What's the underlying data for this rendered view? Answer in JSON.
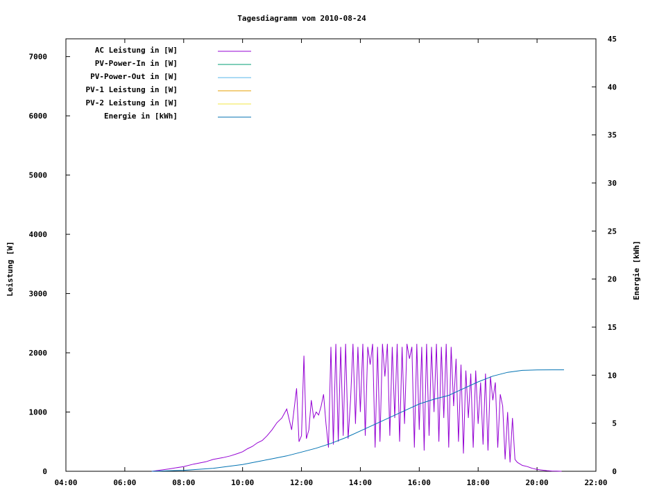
{
  "chart_data": {
    "type": "line",
    "title": "Tagesdiagramm vom 2010-08-24",
    "xlabel": "",
    "ylabel": "Leistung [W]",
    "y2label": "Energie [kWh]",
    "xlim": [
      "04:00",
      "22:00"
    ],
    "ylim": [
      0,
      7300
    ],
    "y2lim": [
      0,
      45
    ],
    "x_ticks": [
      "04:00",
      "06:00",
      "08:00",
      "10:00",
      "12:00",
      "14:00",
      "16:00",
      "18:00",
      "20:00",
      "22:00"
    ],
    "y_ticks": [
      0,
      1000,
      2000,
      3000,
      4000,
      5000,
      6000,
      7000
    ],
    "y2_ticks": [
      0,
      5,
      10,
      15,
      20,
      25,
      30,
      35,
      40,
      45
    ],
    "grid": false,
    "legend_position": "top-left",
    "series": [
      {
        "name": "AC Leistung in [W]",
        "axis": "left",
        "color": "#9400d3",
        "x": [
          "06:55",
          "07:30",
          "08:00",
          "08:20",
          "08:45",
          "09:00",
          "09:20",
          "09:35",
          "09:50",
          "10:00",
          "10:10",
          "10:20",
          "10:30",
          "10:40",
          "10:50",
          "11:00",
          "11:10",
          "11:20",
          "11:30",
          "11:40",
          "11:50",
          "11:55",
          "12:00",
          "12:05",
          "12:10",
          "12:15",
          "12:20",
          "12:25",
          "12:30",
          "12:35",
          "12:40",
          "12:45",
          "12:50",
          "12:55",
          "13:00",
          "13:05",
          "13:10",
          "13:15",
          "13:20",
          "13:25",
          "13:30",
          "13:35",
          "13:40",
          "13:45",
          "13:50",
          "13:55",
          "14:00",
          "14:05",
          "14:10",
          "14:15",
          "14:20",
          "14:25",
          "14:30",
          "14:35",
          "14:40",
          "14:45",
          "14:50",
          "14:55",
          "15:00",
          "15:05",
          "15:10",
          "15:15",
          "15:20",
          "15:25",
          "15:30",
          "15:35",
          "15:40",
          "15:45",
          "15:50",
          "15:55",
          "16:00",
          "16:05",
          "16:10",
          "16:15",
          "16:20",
          "16:25",
          "16:30",
          "16:35",
          "16:40",
          "16:45",
          "16:50",
          "16:55",
          "17:00",
          "17:05",
          "17:10",
          "17:15",
          "17:20",
          "17:25",
          "17:30",
          "17:35",
          "17:40",
          "17:45",
          "17:50",
          "17:55",
          "18:00",
          "18:05",
          "18:10",
          "18:15",
          "18:20",
          "18:25",
          "18:30",
          "18:35",
          "18:40",
          "18:45",
          "18:50",
          "18:55",
          "19:00",
          "19:05",
          "19:10",
          "19:15",
          "19:20",
          "19:30",
          "19:40",
          "19:50",
          "20:00",
          "20:10",
          "20:20",
          "20:30",
          "20:40",
          "20:50"
        ],
        "y": [
          0,
          40,
          80,
          120,
          160,
          200,
          230,
          260,
          300,
          330,
          380,
          420,
          480,
          520,
          600,
          700,
          820,
          900,
          1050,
          700,
          1400,
          500,
          600,
          1950,
          550,
          700,
          1200,
          900,
          1000,
          950,
          1100,
          1300,
          800,
          400,
          2100,
          450,
          2150,
          500,
          2100,
          600,
          2150,
          550,
          1200,
          2150,
          800,
          2100,
          1000,
          2150,
          600,
          2100,
          1800,
          2150,
          400,
          2100,
          500,
          2150,
          1600,
          2150,
          600,
          2100,
          900,
          2150,
          500,
          2100,
          800,
          2150,
          1900,
          2100,
          400,
          2150,
          700,
          2100,
          350,
          2150,
          600,
          2100,
          1000,
          2150,
          500,
          2100,
          900,
          2150,
          400,
          2100,
          1100,
          1900,
          500,
          1800,
          300,
          1700,
          900,
          1650,
          400,
          1700,
          800,
          1500,
          450,
          1650,
          350,
          1600,
          1200,
          1500,
          400,
          1300,
          1100,
          200,
          1000,
          150,
          900,
          200,
          150,
          100,
          80,
          50,
          30,
          20,
          10,
          5,
          2,
          0
        ]
      },
      {
        "name": "PV-Power-In in [W]",
        "axis": "left",
        "color": "#009e73",
        "x": [],
        "y": []
      },
      {
        "name": "PV-Power-Out in [W]",
        "axis": "left",
        "color": "#56b4e9",
        "x": [],
        "y": []
      },
      {
        "name": "PV-1 Leistung in [W]",
        "axis": "left",
        "color": "#e69f00",
        "x": [],
        "y": []
      },
      {
        "name": "PV-2 Leistung in [W]",
        "axis": "left",
        "color": "#f0e442",
        "x": [],
        "y": []
      },
      {
        "name": "Energie in [kWh]",
        "axis": "right",
        "color": "#0072b2",
        "x": [
          "06:55",
          "08:00",
          "09:00",
          "10:00",
          "10:30",
          "11:00",
          "11:30",
          "12:00",
          "12:30",
          "13:00",
          "13:30",
          "14:00",
          "14:30",
          "15:00",
          "15:30",
          "16:00",
          "16:30",
          "17:00",
          "17:30",
          "18:00",
          "18:30",
          "19:00",
          "19:30",
          "20:00",
          "20:30",
          "20:55"
        ],
        "y": [
          0,
          0.1,
          0.3,
          0.7,
          1.0,
          1.3,
          1.6,
          2.0,
          2.4,
          2.9,
          3.5,
          4.2,
          4.9,
          5.6,
          6.3,
          7.0,
          7.5,
          7.9,
          8.6,
          9.3,
          9.9,
          10.3,
          10.5,
          10.55,
          10.56,
          10.56
        ]
      }
    ]
  }
}
